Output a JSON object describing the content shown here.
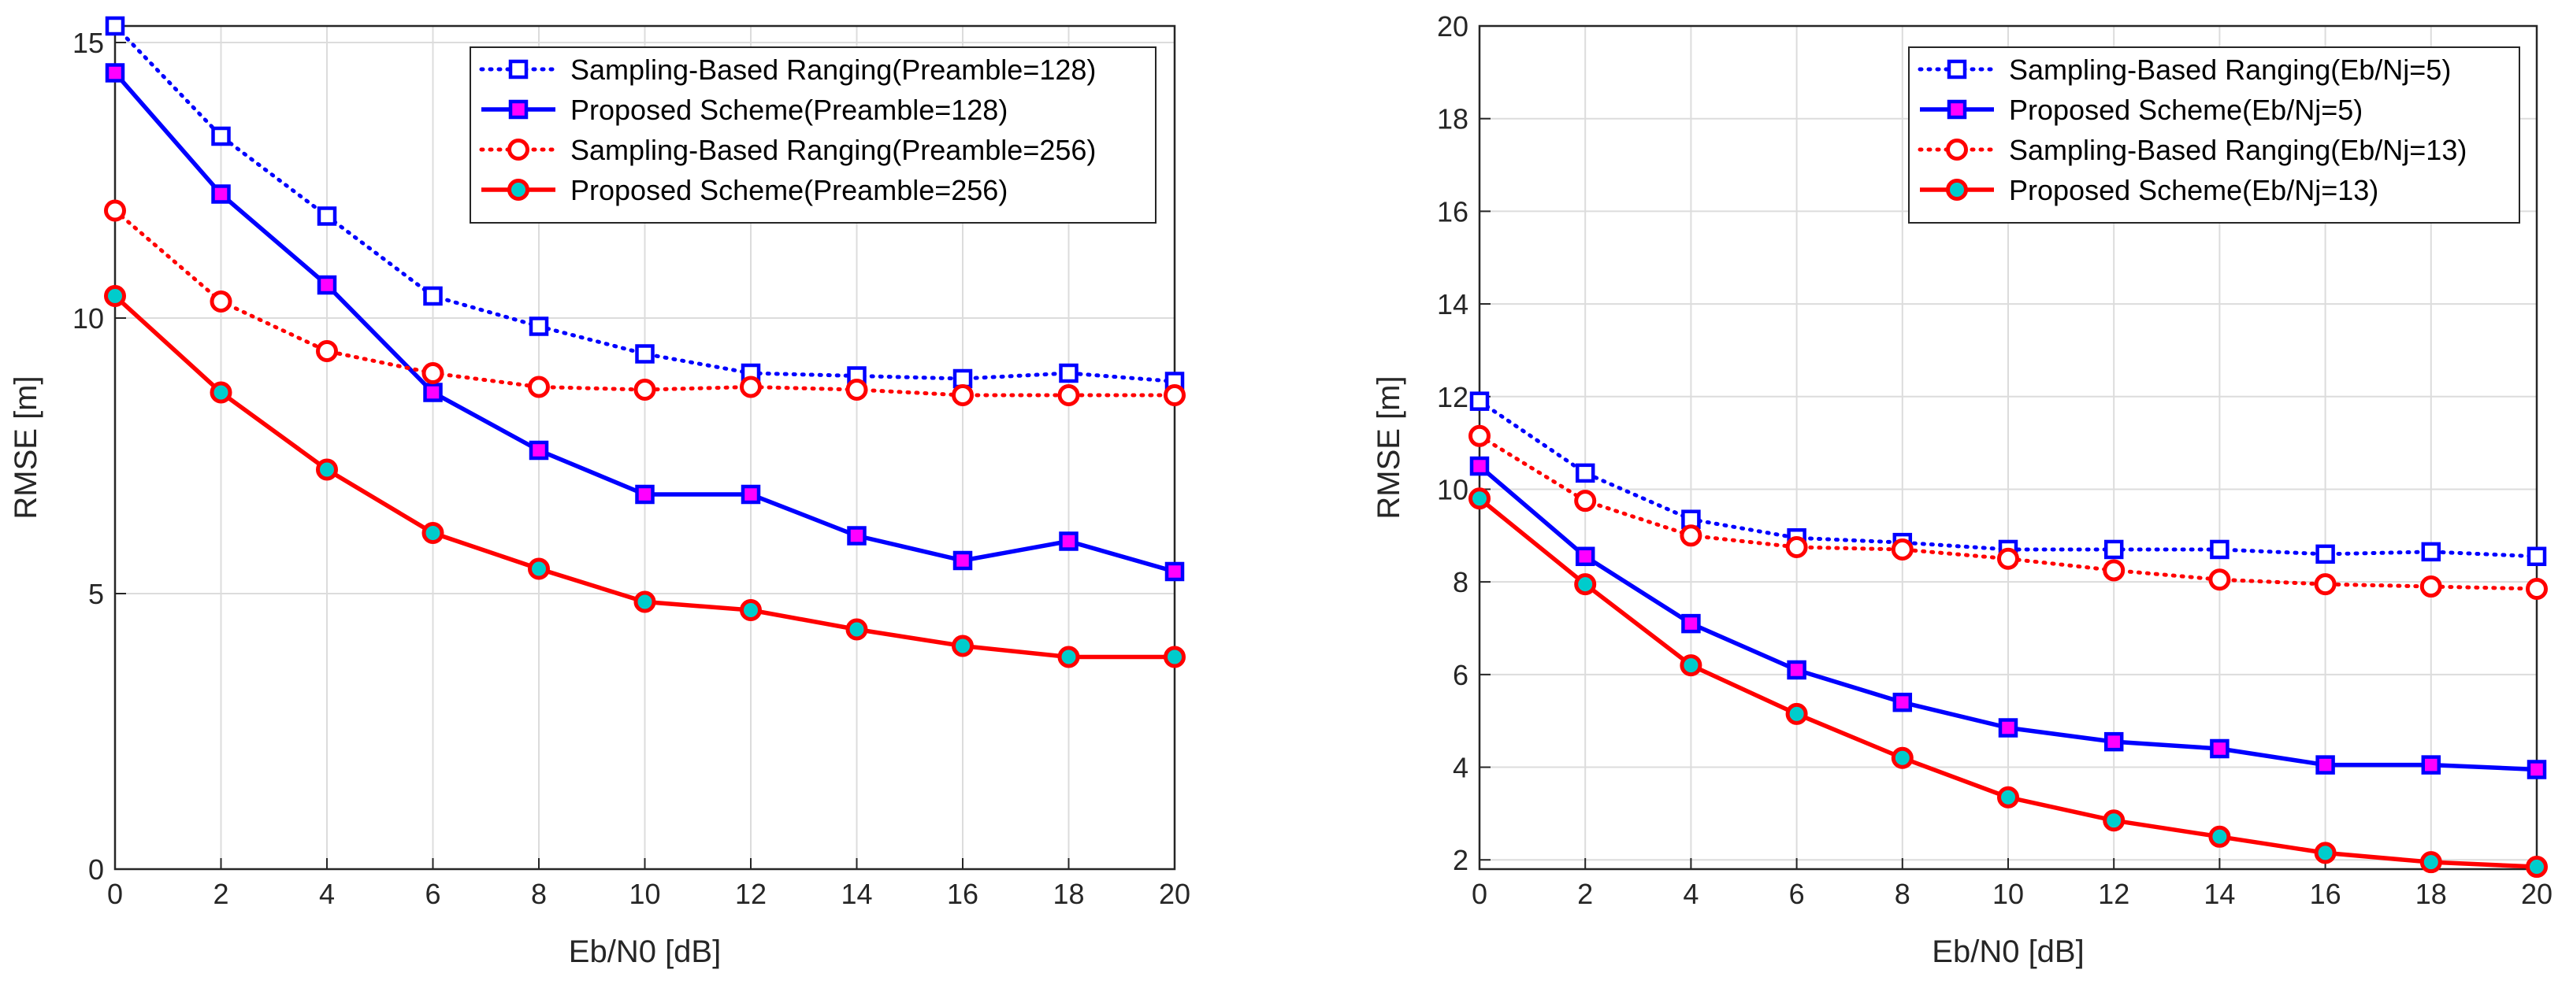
{
  "chart_data": [
    {
      "type": "line",
      "title": "",
      "xlabel": "Eb/N0 [dB]",
      "ylabel": "RMSE [m]",
      "xlim": [
        0,
        20
      ],
      "ylim": [
        0,
        15.3
      ],
      "xticks": [
        0,
        2,
        4,
        6,
        8,
        10,
        12,
        14,
        16,
        18,
        20
      ],
      "yticks": [
        0,
        5,
        10,
        15
      ],
      "grid": true,
      "legend_position": "top-right",
      "x": [
        0,
        2,
        4,
        6,
        8,
        10,
        12,
        14,
        16,
        18,
        20
      ],
      "series": [
        {
          "name": "Sampling-Based Ranging(Preamble=128)",
          "color": "#0000ff",
          "line_style": "dotted",
          "marker": "square",
          "marker_fill": "#ffffff",
          "values": [
            15.3,
            13.3,
            11.85,
            10.4,
            9.85,
            9.35,
            9.0,
            8.95,
            8.9,
            9.0,
            8.85
          ]
        },
        {
          "name": "Proposed Scheme(Preamble=128)",
          "color": "#0000ff",
          "line_style": "solid",
          "marker": "square",
          "marker_fill": "#ff00ff",
          "values": [
            14.45,
            12.25,
            10.6,
            8.65,
            7.6,
            6.8,
            6.8,
            6.05,
            5.6,
            5.95,
            5.4
          ]
        },
        {
          "name": "Sampling-Based Ranging(Preamble=256)",
          "color": "#ff0000",
          "line_style": "dotted",
          "marker": "circle",
          "marker_fill": "#ffffff",
          "values": [
            11.95,
            10.3,
            9.4,
            9.0,
            8.75,
            8.7,
            8.75,
            8.7,
            8.6,
            8.6,
            8.6
          ]
        },
        {
          "name": "Proposed Scheme(Preamble=256)",
          "color": "#ff0000",
          "line_style": "solid",
          "marker": "circle",
          "marker_fill": "#00cccc",
          "values": [
            10.4,
            8.65,
            7.25,
            6.1,
            5.45,
            4.85,
            4.7,
            4.35,
            4.05,
            3.85,
            3.85
          ]
        }
      ]
    },
    {
      "type": "line",
      "title": "",
      "xlabel": "Eb/N0 [dB]",
      "ylabel": "RMSE [m]",
      "xlim": [
        0,
        20
      ],
      "ylim": [
        1.8,
        20
      ],
      "xticks": [
        0,
        2,
        4,
        6,
        8,
        10,
        12,
        14,
        16,
        18,
        20
      ],
      "yticks": [
        2,
        4,
        6,
        8,
        10,
        12,
        14,
        16,
        18,
        20
      ],
      "grid": true,
      "legend_position": "top-right",
      "x": [
        0,
        2,
        4,
        6,
        8,
        10,
        12,
        14,
        16,
        18,
        20
      ],
      "series": [
        {
          "name": "Sampling-Based Ranging(Eb/Nj=5)",
          "color": "#0000ff",
          "line_style": "dotted",
          "marker": "square",
          "marker_fill": "#ffffff",
          "values": [
            11.9,
            10.35,
            9.35,
            8.95,
            8.85,
            8.7,
            8.7,
            8.7,
            8.6,
            8.65,
            8.55
          ]
        },
        {
          "name": "Proposed Scheme(Eb/Nj=5)",
          "color": "#0000ff",
          "line_style": "solid",
          "marker": "square",
          "marker_fill": "#ff00ff",
          "values": [
            10.5,
            8.55,
            7.1,
            6.1,
            5.4,
            4.85,
            4.55,
            4.4,
            4.05,
            4.05,
            3.95
          ]
        },
        {
          "name": "Sampling-Based Ranging(Eb/Nj=13)",
          "color": "#ff0000",
          "line_style": "dotted",
          "marker": "circle",
          "marker_fill": "#ffffff",
          "values": [
            11.15,
            9.75,
            9.0,
            8.75,
            8.7,
            8.5,
            8.25,
            8.05,
            7.95,
            7.9,
            7.85
          ]
        },
        {
          "name": "Proposed Scheme(Eb/Nj=13)",
          "color": "#ff0000",
          "line_style": "solid",
          "marker": "circle",
          "marker_fill": "#00cccc",
          "values": [
            9.8,
            7.95,
            6.2,
            5.15,
            4.2,
            3.35,
            2.85,
            2.5,
            2.15,
            1.95,
            1.85
          ]
        }
      ]
    }
  ]
}
